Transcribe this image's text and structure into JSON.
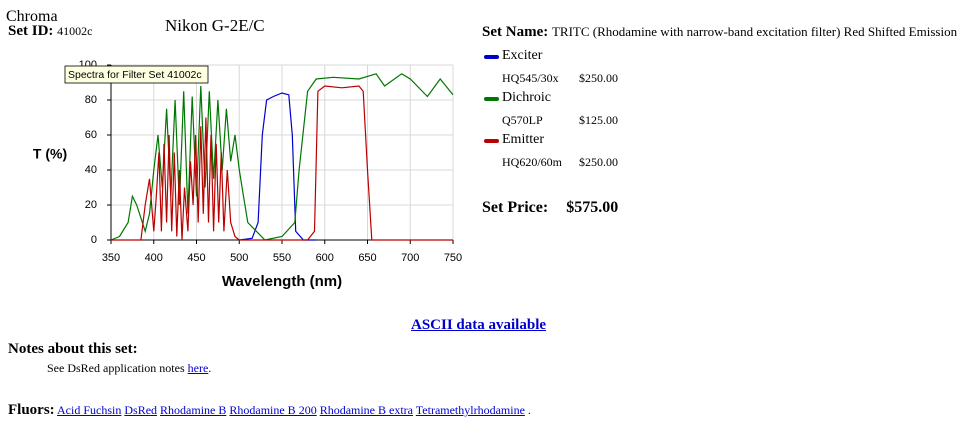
{
  "header": {
    "brand": "Chroma",
    "set_id_label": "Set ID:",
    "set_id": "41002c",
    "product": "Nikon G-2E/C"
  },
  "set_name_label": "Set Name:",
  "set_name": "TRITC (Rhodamine with narrow-band excitation filter) Red Shifted Emission",
  "components": [
    {
      "part": "HQ545/30x",
      "price": "$250.00"
    },
    {
      "part": "Q570LP",
      "price": "$125.00"
    },
    {
      "part": "HQ620/60m",
      "price": "$250.00"
    }
  ],
  "set_price_label": "Set Price:",
  "set_price": "$575.00",
  "ascii_link": "ASCII data available",
  "notes": {
    "title": "Notes about this set:",
    "text": "See DsRed application notes",
    "link": "here",
    "end": "."
  },
  "fluors": {
    "label": "Fluors:",
    "links": [
      "Acid Fuchsin",
      "DsRed",
      "Rhodamine B",
      "Rhodamine B 200",
      "Rhodamine B extra",
      "Tetramethylrhodamine"
    ],
    "end": "."
  },
  "chart_data": {
    "type": "line",
    "tooltip": "Spectra for Filter Set 41002c",
    "xlabel": "Wavelength (nm)",
    "ylabel": "T (%)",
    "xlim": [
      350,
      750
    ],
    "ylim": [
      0,
      100
    ],
    "xticks": [
      350,
      400,
      450,
      500,
      550,
      600,
      650,
      700,
      750
    ],
    "yticks": [
      0,
      20,
      40,
      60,
      80,
      100
    ],
    "grid": true,
    "series": [
      {
        "name": "Exciter",
        "color": "#0000cc",
        "x": [
          500,
          515,
          522,
          527,
          532,
          540,
          550,
          558,
          562,
          566,
          575,
          590
        ],
        "values": [
          0,
          1,
          10,
          60,
          80,
          82,
          84,
          83,
          60,
          5,
          0,
          0
        ]
      },
      {
        "name": "Dichroic",
        "color": "#007700",
        "x": [
          350,
          360,
          370,
          375,
          380,
          390,
          395,
          400,
          405,
          410,
          415,
          420,
          425,
          430,
          435,
          440,
          445,
          450,
          455,
          460,
          465,
          470,
          475,
          480,
          485,
          490,
          495,
          500,
          505,
          510,
          520,
          530,
          550,
          565,
          570,
          580,
          590,
          610,
          640,
          660,
          670,
          690,
          700,
          720,
          735,
          750
        ],
        "values": [
          0,
          2,
          10,
          25,
          20,
          5,
          15,
          40,
          60,
          30,
          75,
          25,
          80,
          20,
          85,
          15,
          82,
          25,
          88,
          30,
          85,
          35,
          80,
          40,
          75,
          45,
          60,
          40,
          25,
          10,
          5,
          0,
          2,
          10,
          40,
          85,
          92,
          93,
          92,
          95,
          88,
          95,
          92,
          82,
          92,
          83
        ]
      },
      {
        "name": "Emitter",
        "color": "#bb0000",
        "x": [
          350,
          385,
          390,
          395,
          400,
          403,
          406,
          409,
          412,
          415,
          418,
          421,
          424,
          427,
          430,
          433,
          436,
          440,
          443,
          446,
          449,
          452,
          455,
          458,
          461,
          464,
          467,
          470,
          473,
          476,
          479,
          482,
          486,
          490,
          495,
          500,
          580,
          588,
          592,
          600,
          620,
          640,
          645,
          650,
          655,
          750
        ],
        "values": [
          0,
          0,
          20,
          35,
          5,
          25,
          50,
          5,
          55,
          10,
          60,
          5,
          50,
          2,
          40,
          0,
          30,
          5,
          45,
          20,
          60,
          10,
          65,
          15,
          70,
          10,
          60,
          5,
          55,
          10,
          50,
          5,
          40,
          10,
          2,
          0,
          0,
          5,
          85,
          88,
          87,
          88,
          85,
          40,
          0,
          0
        ]
      }
    ]
  }
}
